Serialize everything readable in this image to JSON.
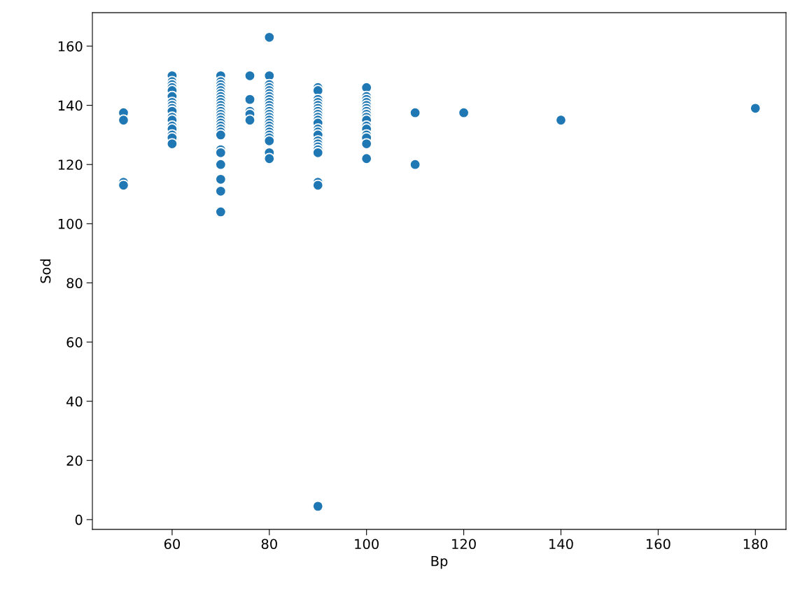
{
  "chart_data": {
    "type": "scatter",
    "xlabel": "Bp",
    "ylabel": "Sod",
    "xlim": [
      43.6,
      186.3
    ],
    "ylim": [
      -3.3,
      171.3
    ],
    "xticks": [
      60,
      80,
      100,
      120,
      140,
      160,
      180
    ],
    "yticks": [
      0,
      20,
      40,
      60,
      80,
      100,
      120,
      140,
      160
    ],
    "grid": false,
    "legend": false,
    "marker": "circle",
    "series": [
      {
        "color": "#1f77b4",
        "x": [
          50,
          50,
          50,
          50,
          60,
          60,
          60,
          60,
          60,
          60,
          60,
          60,
          60,
          60,
          60,
          60,
          60,
          60,
          60,
          60,
          60,
          70,
          70,
          70,
          70,
          70,
          70,
          70,
          70,
          70,
          70,
          70,
          70,
          70,
          70,
          70,
          70,
          70,
          70,
          70,
          70,
          70,
          70,
          70,
          70,
          70,
          70,
          76,
          76,
          76,
          76,
          76,
          80,
          80,
          80,
          80,
          80,
          80,
          80,
          80,
          80,
          80,
          80,
          80,
          80,
          80,
          80,
          80,
          80,
          80,
          80,
          80,
          80,
          80,
          80,
          80,
          90,
          90,
          90,
          90,
          90,
          90,
          90,
          90,
          90,
          90,
          90,
          90,
          90,
          90,
          90,
          90,
          90,
          90,
          90,
          90,
          90,
          90,
          100,
          100,
          100,
          100,
          100,
          100,
          100,
          100,
          100,
          100,
          100,
          100,
          100,
          100,
          100,
          100,
          110,
          110,
          120,
          140,
          180
        ],
        "values": [
          137.5,
          135,
          114,
          113,
          150,
          148,
          147,
          146,
          145,
          143,
          141,
          140,
          139,
          138,
          136,
          135,
          133,
          132,
          130,
          129,
          127,
          150,
          148,
          147,
          146,
          145,
          144,
          143,
          142,
          141,
          140,
          139,
          138,
          137,
          136,
          135,
          134,
          133,
          132,
          131,
          130,
          125,
          124,
          120,
          115,
          111,
          104,
          150,
          142,
          138,
          137,
          135,
          163,
          150,
          147,
          146,
          145,
          144,
          143,
          142,
          141,
          140,
          139,
          138,
          137,
          136,
          135,
          134,
          133,
          132,
          131,
          130,
          129,
          128,
          124,
          122,
          146,
          145,
          142,
          141,
          140,
          139,
          138,
          137,
          136,
          135,
          134,
          132,
          131,
          130,
          128,
          127,
          126,
          125,
          124,
          114,
          113,
          4.5,
          146,
          143,
          142,
          141,
          140,
          139,
          138,
          137,
          136,
          135,
          133,
          132,
          130,
          129,
          127,
          122,
          137.5,
          120,
          137.5,
          135,
          139
        ]
      }
    ]
  }
}
